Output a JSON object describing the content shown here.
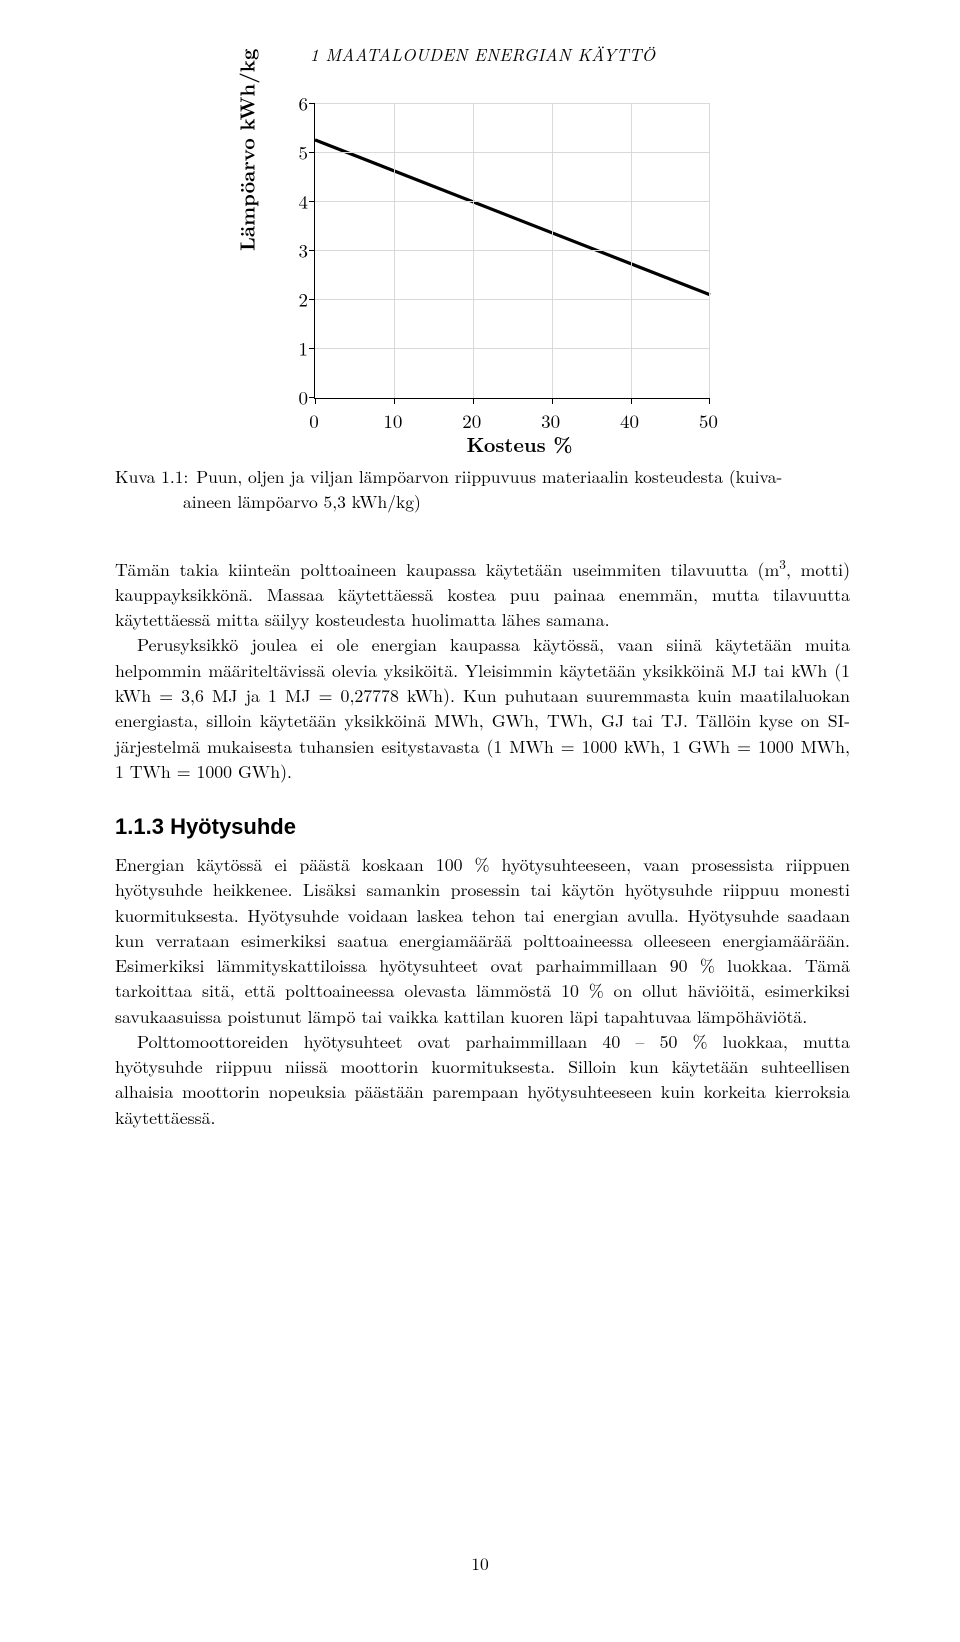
{
  "running_head": "1 MAATALOUDEN ENERGIAN KÄYTTÖ",
  "chart": {
    "type": "line",
    "ylabel": "Lämpöarvo kWh/kg",
    "xlabel": "Kosteus %",
    "xlim": [
      0,
      50
    ],
    "ylim": [
      0,
      6
    ],
    "xticks": [
      0,
      10,
      20,
      30,
      40,
      50
    ],
    "yticks": [
      0,
      1,
      2,
      3,
      4,
      5,
      6
    ],
    "grid_color": "#d9d9d9",
    "axis_color": "#000000",
    "line_color": "#000000",
    "line_width": 3.2,
    "tick_fontsize": 19,
    "label_fontsize": 20,
    "series": {
      "x": [
        0,
        50
      ],
      "y": [
        5.25,
        2.1
      ]
    }
  },
  "caption": {
    "label": "Kuva 1.1:",
    "line1": "Puun, oljen ja viljan lämpöarvon riippuvuus materiaalin kosteudesta (kuiva-",
    "line2": "aineen lämpöarvo 5,3 kWh/kg)"
  },
  "para1_a": "Tämän takia kiinteän polttoaineen kaupassa käytetään useimmiten tilavuutta (m",
  "para1_sup": "3",
  "para1_b": ", motti) kauppayksikkönä. Massaa käytettäessä kostea puu painaa enemmän, mutta tilavuutta käytettäessä mitta säilyy kosteudesta huolimatta lähes samana.",
  "para2": "Perusyksikkö joulea ei ole energian kaupassa käytössä, vaan siinä käytetään muita helpommin määriteltävissä olevia yksiköitä. Yleisimmin käytetään yksikköinä MJ tai kWh (1 kWh = 3,6 MJ ja 1 MJ = 0,27778 kWh). Kun puhutaan suuremmasta kuin maatilaluokan energiasta, silloin käytetään yksikköinä MWh, GWh, TWh, GJ tai TJ. Tällöin kyse on SI-järjestelmä mukaisesta tuhansien esitystavasta (1 MWh = 1000 kWh, 1 GWh = 1000 MWh, 1 TWh = 1000 GWh).",
  "section": {
    "number": "1.1.3",
    "title": "Hyötysuhde"
  },
  "para3": "Energian käytössä ei päästä koskaan 100 % hyötysuhteeseen, vaan prosessista riippuen hyötysuhde heikkenee. Lisäksi samankin prosessin tai käytön hyötysuhde riippuu monesti kuormituksesta. Hyötysuhde voidaan laskea tehon tai energian avulla. Hyötysuhde saadaan kun verrataan esimerkiksi saatua energiamäärää polttoaineessa olleeseen energiamäärään. Esimerkiksi lämmityskattiloissa hyötysuhteet ovat parhaimmillaan 90 % luokkaa. Tämä tarkoittaa sitä, että polttoaineessa olevasta lämmöstä 10 % on ollut häviöitä, esimerkiksi savukaasuissa poistunut lämpö tai vaikka kattilan kuoren läpi tapahtuvaa lämpöhäviötä.",
  "para4": "Polttomoottoreiden hyötysuhteet ovat parhaimmillaan 40 – 50 % luokkaa, mutta hyötysuhde riippuu niissä moottorin kuormituksesta. Silloin kun käytetään suhteellisen alhaisia moottorin nopeuksia päästään parempaan hyötysuhteeseen kuin korkeita kierroksia käytettäessä.",
  "page_number": "10"
}
